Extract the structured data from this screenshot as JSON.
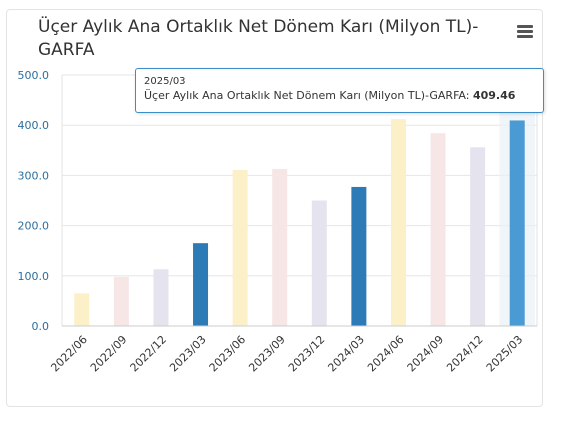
{
  "chart_data": {
    "type": "bar",
    "title": "Üçer Aylık Ana Ortaklık Net Dönem Karı (Milyon TL)-GARFA",
    "categories": [
      "2022/06",
      "2022/09",
      "2022/12",
      "2023/03",
      "2023/06",
      "2023/09",
      "2023/12",
      "2024/03",
      "2024/06",
      "2024/09",
      "2024/12",
      "2025/03"
    ],
    "values": [
      65,
      98,
      113,
      165,
      311,
      313,
      250,
      277,
      412,
      384,
      356,
      409.46
    ],
    "bar_colors": [
      "#fcf0c9",
      "#f6e6e6",
      "#e5e3ed",
      "#2c7bb6",
      "#fcf0c9",
      "#f6e6e6",
      "#e5e3ed",
      "#2c7bb6",
      "#fcf0c9",
      "#f6e6e6",
      "#e5e3ed",
      "#4a9ad4"
    ],
    "ylim": [
      0,
      500
    ],
    "yticks": [
      "0.0",
      "100.0",
      "200.0",
      "300.0",
      "400.0",
      "500.0"
    ],
    "ytick_values": [
      0,
      100,
      200,
      300,
      400,
      500
    ],
    "grid": true,
    "highlighted_category": "2025/03"
  },
  "tooltip": {
    "date": "2025/03",
    "series_label": "Üçer Aylık Ana Ortaklık Net Dönem Karı (Milyon TL)-GARFA:",
    "value": "409.46"
  },
  "colors": {
    "axis_text": "#333333",
    "ytick_text": "#2c6e9e",
    "grid": "#e6e6e6",
    "tooltip_border": "#3a8fc9"
  },
  "icons": {
    "menu": "hamburger-menu-icon"
  }
}
